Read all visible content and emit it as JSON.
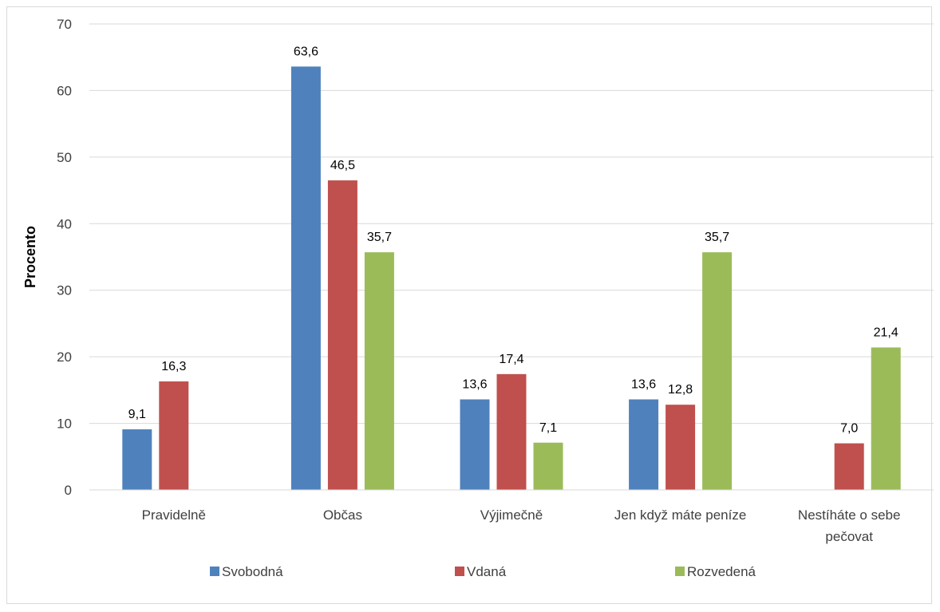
{
  "chart_data": {
    "type": "bar",
    "ylabel": "Procento",
    "ylim": [
      0,
      70
    ],
    "yticks": [
      0,
      10,
      20,
      30,
      40,
      50,
      60,
      70
    ],
    "grid": true,
    "legend_position": "bottom",
    "categories": [
      [
        "Pravidelně"
      ],
      [
        "Občas"
      ],
      [
        "Výjimečně"
      ],
      [
        "Jen když máte peníze"
      ],
      [
        "Nestíháte o sebe",
        "pečovat"
      ]
    ],
    "series": [
      {
        "name": "Svobodná",
        "color": "#4f81bd",
        "values": [
          9.1,
          63.6,
          13.6,
          13.6,
          null
        ],
        "labels": [
          "9,1",
          "63,6",
          "13,6",
          "13,6",
          ""
        ]
      },
      {
        "name": "Vdaná",
        "color": "#c0504d",
        "values": [
          16.3,
          46.5,
          17.4,
          12.8,
          7.0
        ],
        "labels": [
          "16,3",
          "46,5",
          "17,4",
          "12,8",
          "7,0"
        ]
      },
      {
        "name": "Rozvedená",
        "color": "#9bbb59",
        "values": [
          null,
          35.7,
          7.1,
          35.7,
          21.4
        ],
        "labels": [
          "",
          "35,7",
          "7,1",
          "35,7",
          "21,4"
        ]
      }
    ]
  }
}
